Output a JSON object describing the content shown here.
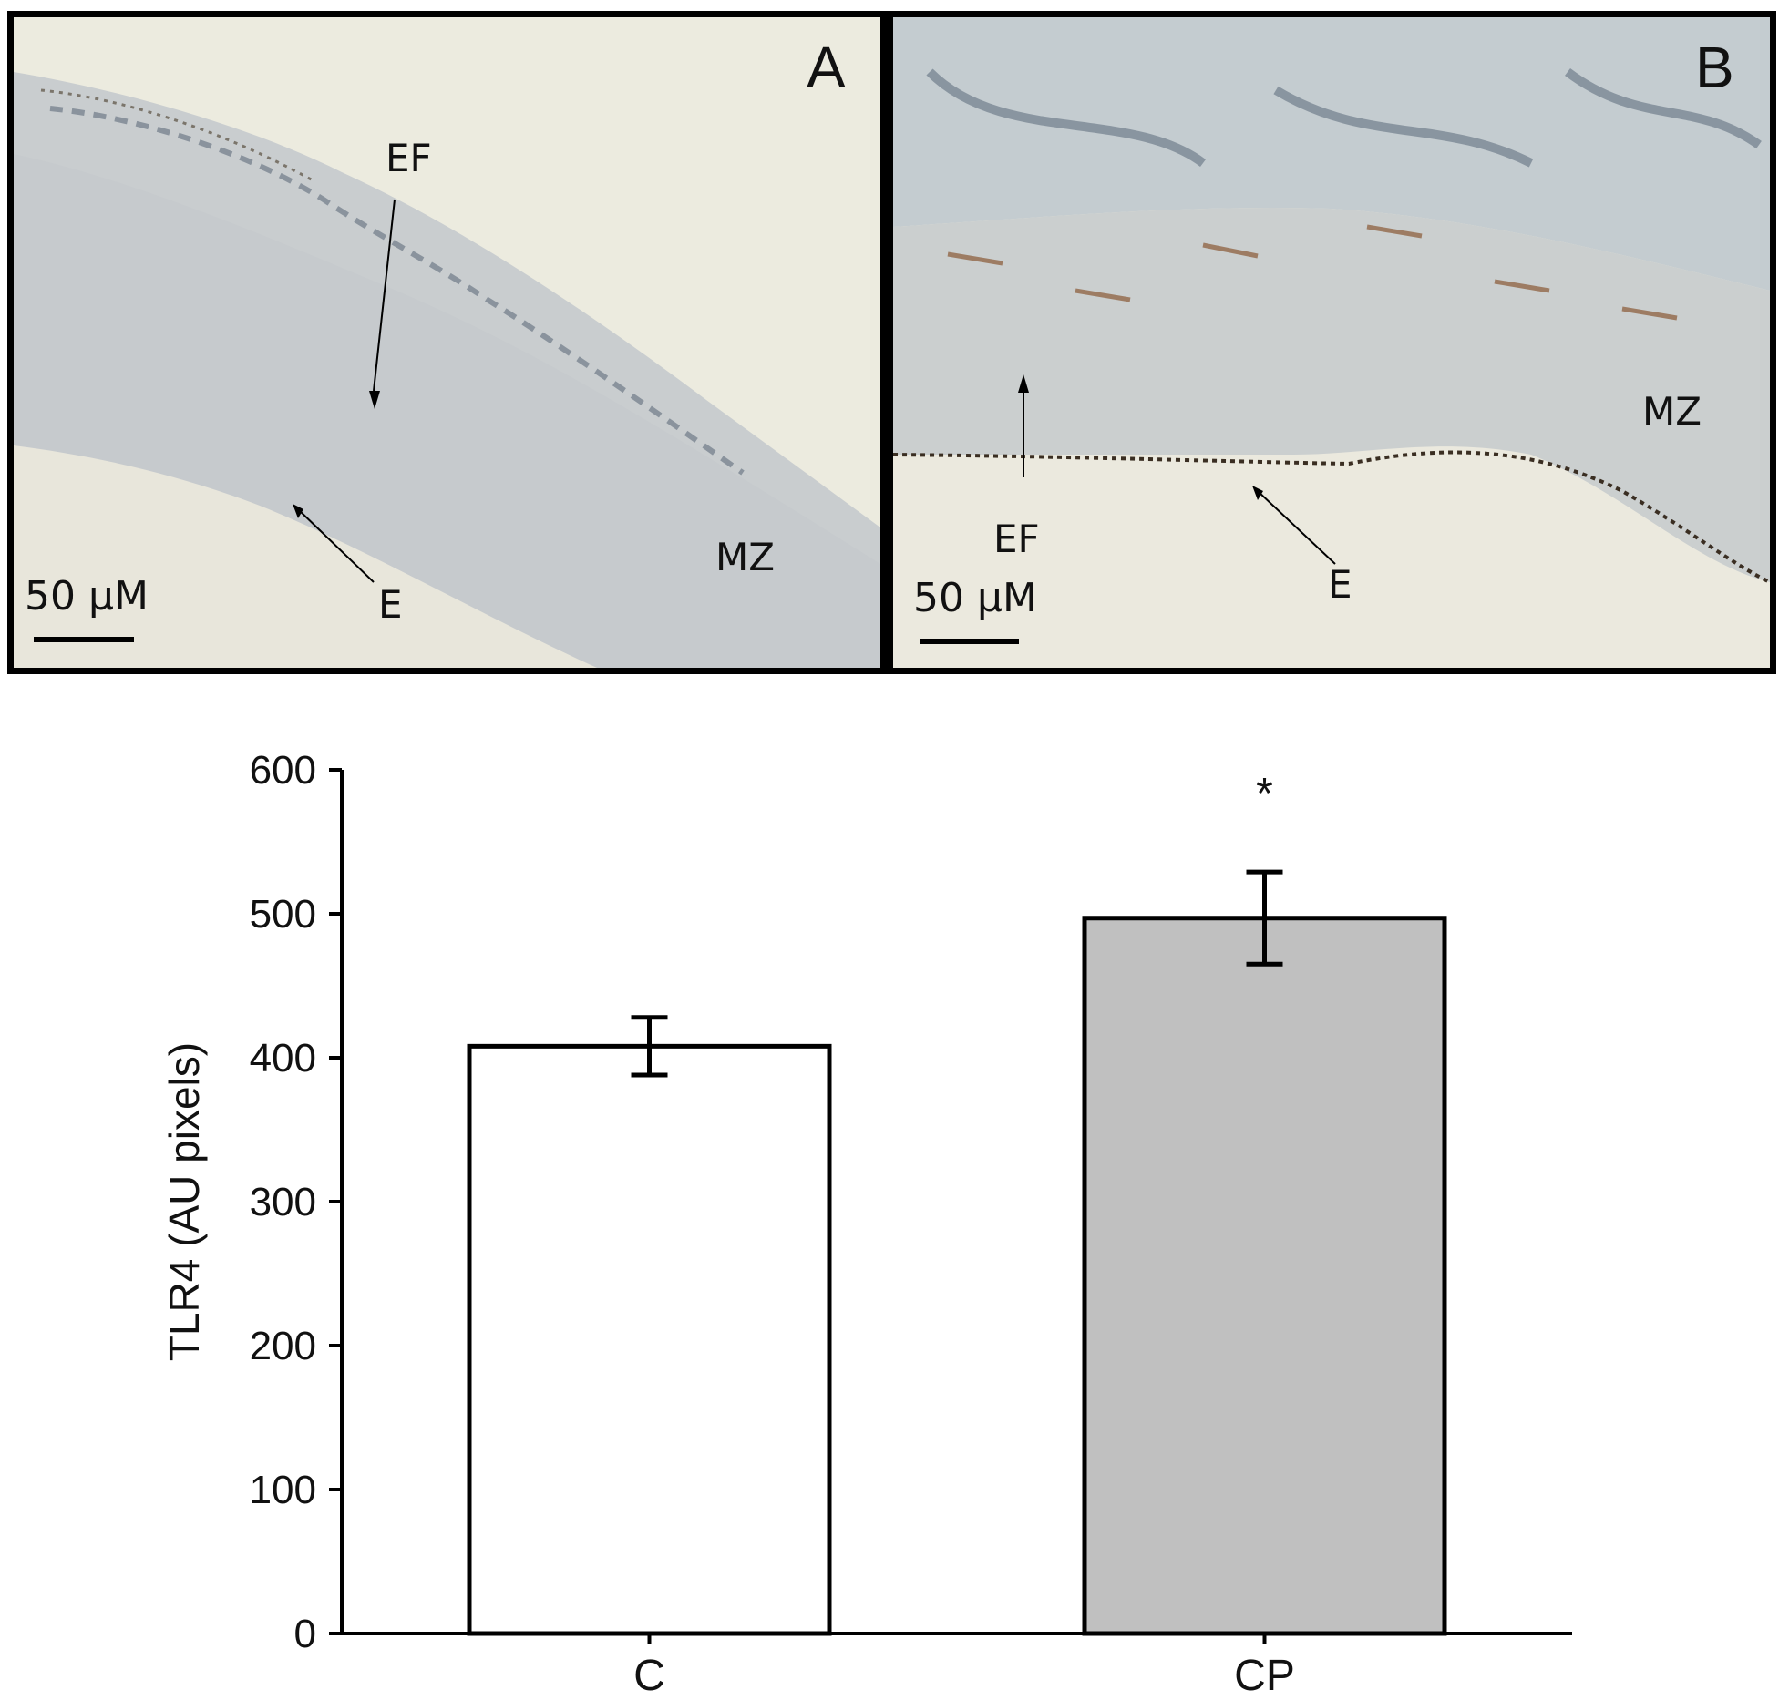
{
  "panels": [
    {
      "letter": "A",
      "labels": {
        "ef": "EF",
        "mz": "MZ",
        "e": "E"
      },
      "scale_text": "50 μM"
    },
    {
      "letter": "B",
      "labels": {
        "ef": "EF",
        "mz": "MZ",
        "e": "E"
      },
      "scale_text": "50 μM"
    }
  ],
  "colors": {
    "background_tissue": "#e9e7dc",
    "bar_c": "#ffffff",
    "bar_cp": "#c0c0c0",
    "outline": "#000000"
  },
  "chart_data": {
    "type": "bar",
    "categories": [
      "C",
      "CP"
    ],
    "values": [
      408,
      497
    ],
    "errors": [
      20,
      32
    ],
    "bar_colors": [
      "#ffffff",
      "#c0c0c0"
    ],
    "significance": [
      "",
      "*"
    ],
    "ylabel": "TLR4 (AU pixels)",
    "xlabel": "",
    "ylim": [
      0,
      600
    ],
    "yticks": [
      0,
      100,
      200,
      300,
      400,
      500,
      600
    ],
    "grid": false
  }
}
